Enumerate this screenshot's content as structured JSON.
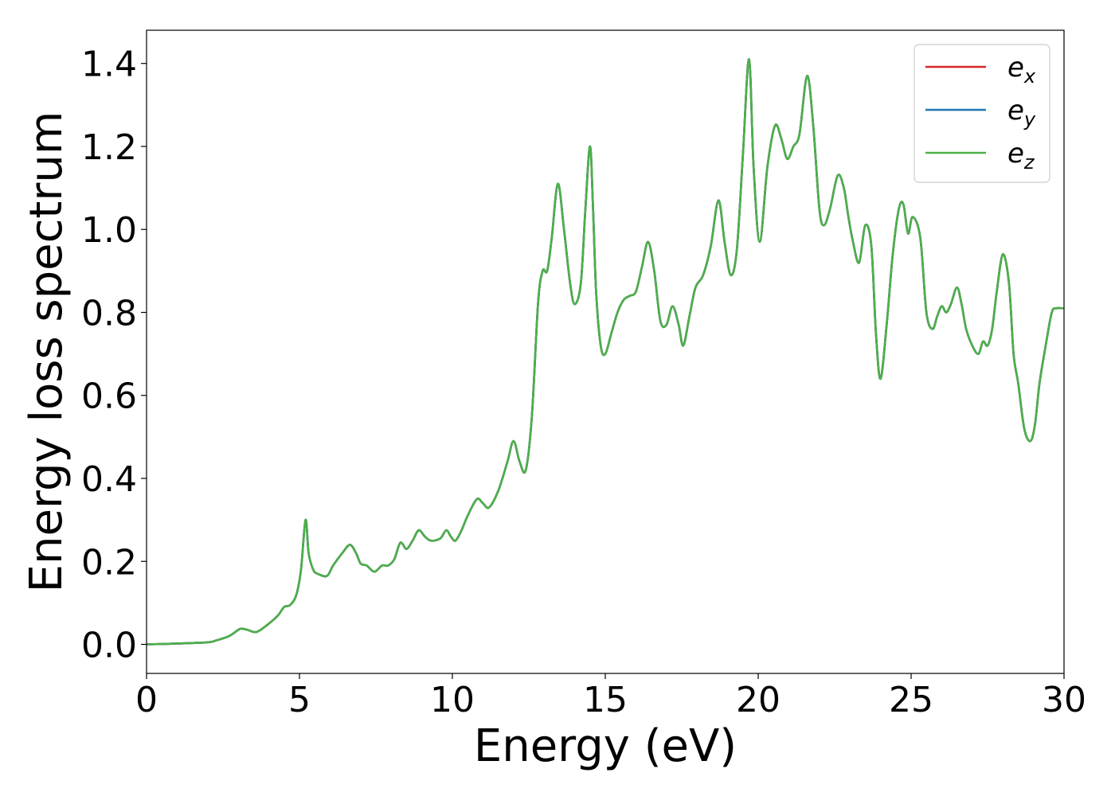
{
  "chart_data": {
    "type": "line",
    "title": "",
    "xlabel": "Energy (eV)",
    "ylabel": "Energy loss spectrum",
    "xlim": [
      0,
      30
    ],
    "ylim": [
      -0.07,
      1.48
    ],
    "x_ticks": [
      0,
      5,
      10,
      15,
      20,
      25,
      30
    ],
    "x_tick_labels": [
      "0",
      "5",
      "10",
      "15",
      "20",
      "25",
      "30"
    ],
    "y_ticks": [
      0.0,
      0.2,
      0.4,
      0.6,
      0.8,
      1.0,
      1.2,
      1.4
    ],
    "y_tick_labels": [
      "0.0",
      "0.2",
      "0.4",
      "0.6",
      "0.8",
      "1.0",
      "1.2",
      "1.4"
    ],
    "grid": false,
    "legend": {
      "placement": "top-right",
      "entries": [
        {
          "base": "e",
          "sub": "x",
          "color": "#d62728"
        },
        {
          "base": "e",
          "sub": "y",
          "color": "#1f77b4"
        },
        {
          "base": "e",
          "sub": "z",
          "color": "#4daf4a"
        }
      ]
    },
    "x": [
      0.0,
      1.0,
      2.0,
      2.3,
      2.7,
      3.0,
      3.1,
      3.3,
      3.6,
      4.0,
      4.3,
      4.5,
      4.7,
      4.9,
      5.05,
      5.2,
      5.3,
      5.45,
      5.6,
      5.9,
      6.1,
      6.4,
      6.65,
      6.85,
      7.0,
      7.2,
      7.45,
      7.7,
      7.9,
      8.1,
      8.3,
      8.5,
      8.7,
      8.9,
      9.1,
      9.3,
      9.6,
      9.8,
      9.95,
      10.1,
      10.3,
      10.5,
      10.8,
      11.0,
      11.2,
      11.5,
      11.8,
      12.0,
      12.2,
      12.4,
      12.6,
      12.8,
      12.95,
      13.1,
      13.25,
      13.45,
      13.65,
      13.85,
      14.0,
      14.2,
      14.35,
      14.5,
      14.6,
      14.7,
      14.85,
      15.0,
      15.2,
      15.4,
      15.6,
      15.8,
      16.0,
      16.2,
      16.4,
      16.6,
      16.8,
      17.0,
      17.2,
      17.4,
      17.55,
      17.75,
      17.95,
      18.2,
      18.45,
      18.7,
      18.9,
      19.1,
      19.3,
      19.5,
      19.7,
      19.85,
      20.05,
      20.3,
      20.55,
      20.75,
      20.95,
      21.15,
      21.35,
      21.6,
      21.8,
      22.0,
      22.15,
      22.35,
      22.6,
      22.8,
      22.95,
      23.1,
      23.3,
      23.5,
      23.7,
      23.85,
      24.0,
      24.2,
      24.4,
      24.6,
      24.75,
      24.9,
      25.05,
      25.3,
      25.5,
      25.7,
      25.85,
      26.0,
      26.15,
      26.3,
      26.5,
      26.65,
      26.8,
      27.0,
      27.2,
      27.35,
      27.5,
      27.65,
      27.8,
      28.0,
      28.2,
      28.35,
      28.5,
      28.7,
      28.9,
      29.05,
      29.2,
      29.4,
      29.6,
      29.75,
      29.9,
      30.0
    ],
    "series": [
      {
        "name": "e_x",
        "color": "#d62728",
        "values": [
          0.0,
          0.002,
          0.005,
          0.01,
          0.02,
          0.035,
          0.038,
          0.035,
          0.03,
          0.05,
          0.07,
          0.09,
          0.095,
          0.12,
          0.18,
          0.3,
          0.22,
          0.18,
          0.17,
          0.165,
          0.19,
          0.22,
          0.24,
          0.22,
          0.195,
          0.19,
          0.175,
          0.19,
          0.19,
          0.205,
          0.245,
          0.23,
          0.25,
          0.275,
          0.26,
          0.25,
          0.255,
          0.275,
          0.26,
          0.25,
          0.275,
          0.31,
          0.35,
          0.34,
          0.33,
          0.37,
          0.44,
          0.49,
          0.44,
          0.42,
          0.55,
          0.82,
          0.9,
          0.9,
          0.98,
          1.11,
          1.0,
          0.87,
          0.82,
          0.87,
          1.05,
          1.2,
          1.05,
          0.85,
          0.72,
          0.7,
          0.75,
          0.8,
          0.83,
          0.84,
          0.85,
          0.91,
          0.97,
          0.9,
          0.78,
          0.77,
          0.815,
          0.77,
          0.72,
          0.79,
          0.86,
          0.89,
          0.96,
          1.07,
          0.97,
          0.89,
          0.95,
          1.18,
          1.41,
          1.15,
          0.97,
          1.15,
          1.25,
          1.22,
          1.17,
          1.2,
          1.23,
          1.37,
          1.25,
          1.05,
          1.01,
          1.05,
          1.13,
          1.1,
          1.03,
          0.97,
          0.92,
          1.01,
          0.96,
          0.75,
          0.64,
          0.77,
          0.94,
          1.05,
          1.06,
          0.99,
          1.03,
          0.98,
          0.8,
          0.76,
          0.79,
          0.815,
          0.8,
          0.82,
          0.86,
          0.82,
          0.76,
          0.72,
          0.7,
          0.73,
          0.72,
          0.76,
          0.85,
          0.94,
          0.87,
          0.7,
          0.63,
          0.52,
          0.49,
          0.53,
          0.63,
          0.72,
          0.8,
          0.81,
          0.81,
          0.81
        ]
      },
      {
        "name": "e_y",
        "color": "#1f77b4",
        "values": [
          0.0,
          0.002,
          0.005,
          0.01,
          0.02,
          0.035,
          0.038,
          0.035,
          0.03,
          0.05,
          0.07,
          0.09,
          0.095,
          0.12,
          0.18,
          0.3,
          0.22,
          0.18,
          0.17,
          0.165,
          0.19,
          0.22,
          0.24,
          0.22,
          0.195,
          0.19,
          0.175,
          0.19,
          0.19,
          0.205,
          0.245,
          0.23,
          0.25,
          0.275,
          0.26,
          0.25,
          0.255,
          0.275,
          0.26,
          0.25,
          0.275,
          0.31,
          0.35,
          0.34,
          0.33,
          0.37,
          0.44,
          0.49,
          0.44,
          0.42,
          0.55,
          0.82,
          0.9,
          0.9,
          0.98,
          1.11,
          1.0,
          0.87,
          0.82,
          0.87,
          1.05,
          1.2,
          1.05,
          0.85,
          0.72,
          0.7,
          0.75,
          0.8,
          0.83,
          0.84,
          0.85,
          0.91,
          0.97,
          0.9,
          0.78,
          0.77,
          0.815,
          0.77,
          0.72,
          0.79,
          0.86,
          0.89,
          0.96,
          1.07,
          0.97,
          0.89,
          0.95,
          1.18,
          1.41,
          1.15,
          0.97,
          1.15,
          1.25,
          1.22,
          1.17,
          1.2,
          1.23,
          1.37,
          1.25,
          1.05,
          1.01,
          1.05,
          1.13,
          1.1,
          1.03,
          0.97,
          0.92,
          1.01,
          0.96,
          0.75,
          0.64,
          0.77,
          0.94,
          1.05,
          1.06,
          0.99,
          1.03,
          0.98,
          0.8,
          0.76,
          0.79,
          0.815,
          0.8,
          0.82,
          0.86,
          0.82,
          0.76,
          0.72,
          0.7,
          0.73,
          0.72,
          0.76,
          0.85,
          0.94,
          0.87,
          0.7,
          0.63,
          0.52,
          0.49,
          0.53,
          0.63,
          0.72,
          0.8,
          0.81,
          0.81,
          0.81
        ]
      },
      {
        "name": "e_z",
        "color": "#4daf4a",
        "values": [
          0.0,
          0.002,
          0.005,
          0.01,
          0.02,
          0.035,
          0.038,
          0.035,
          0.03,
          0.05,
          0.07,
          0.09,
          0.095,
          0.12,
          0.18,
          0.3,
          0.22,
          0.18,
          0.17,
          0.165,
          0.19,
          0.22,
          0.24,
          0.22,
          0.195,
          0.19,
          0.175,
          0.19,
          0.19,
          0.205,
          0.245,
          0.23,
          0.25,
          0.275,
          0.26,
          0.25,
          0.255,
          0.275,
          0.26,
          0.25,
          0.275,
          0.31,
          0.35,
          0.34,
          0.33,
          0.37,
          0.44,
          0.49,
          0.44,
          0.42,
          0.55,
          0.82,
          0.9,
          0.9,
          0.98,
          1.11,
          1.0,
          0.87,
          0.82,
          0.87,
          1.05,
          1.2,
          1.05,
          0.85,
          0.72,
          0.7,
          0.75,
          0.8,
          0.83,
          0.84,
          0.85,
          0.91,
          0.97,
          0.9,
          0.78,
          0.77,
          0.815,
          0.77,
          0.72,
          0.79,
          0.86,
          0.89,
          0.96,
          1.07,
          0.97,
          0.89,
          0.95,
          1.18,
          1.41,
          1.15,
          0.97,
          1.15,
          1.25,
          1.22,
          1.17,
          1.2,
          1.23,
          1.37,
          1.25,
          1.05,
          1.01,
          1.05,
          1.13,
          1.1,
          1.03,
          0.97,
          0.92,
          1.01,
          0.96,
          0.75,
          0.64,
          0.77,
          0.94,
          1.05,
          1.06,
          0.99,
          1.03,
          0.98,
          0.8,
          0.76,
          0.79,
          0.815,
          0.8,
          0.82,
          0.86,
          0.82,
          0.76,
          0.72,
          0.7,
          0.73,
          0.72,
          0.76,
          0.85,
          0.94,
          0.87,
          0.7,
          0.63,
          0.52,
          0.49,
          0.53,
          0.63,
          0.72,
          0.8,
          0.81,
          0.81,
          0.81
        ]
      }
    ]
  }
}
